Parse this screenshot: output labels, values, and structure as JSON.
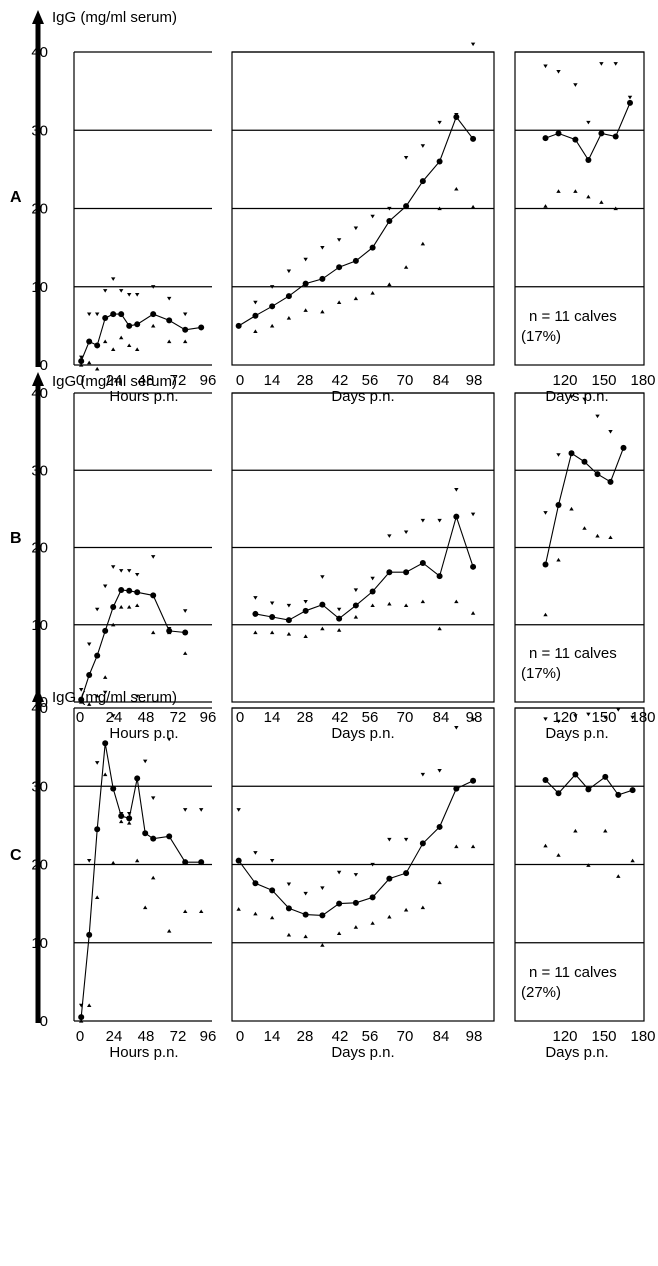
{
  "ylabel": "IgG (mg/ml serum)",
  "y_ticks": [
    "0",
    "10",
    "20",
    "30",
    "40"
  ],
  "panels_meta": {
    "hours": {
      "xlabel": "Hours p.n.",
      "ticks": [
        "0",
        "24",
        "48",
        "72",
        "96"
      ],
      "tick_values": [
        0,
        24,
        48,
        72,
        96
      ]
    },
    "days": {
      "xlabel": "Days p.n.",
      "ticks": [
        "0",
        "14",
        "28",
        "42",
        "56",
        "70",
        "84",
        "98"
      ],
      "tick_values": [
        0,
        14,
        28,
        42,
        56,
        70,
        84,
        98
      ]
    },
    "late": {
      "xlabel": "Days p.n.",
      "ticks": [
        "120",
        "150",
        "180"
      ],
      "tick_values": [
        120,
        150,
        180
      ]
    }
  },
  "chart_data": [
    {
      "group": "A",
      "type": "line",
      "ylabel": "IgG (mg/ml serum)",
      "ylim": [
        0,
        40
      ],
      "grid": true,
      "note_line1": "n = 11 calves",
      "note_line2": "(17%)",
      "panels": [
        {
          "xlabel": "Hours p.n.",
          "xlim": [
            0,
            96
          ],
          "mean": {
            "x": [
              0,
              6,
              12,
              18,
              24,
              30,
              36,
              42,
              54,
              66,
              78,
              90
            ],
            "y": [
              0.5,
              3,
              2.5,
              6,
              6.5,
              6.5,
              5,
              5.2,
              6.5,
              5.7,
              4.5,
              4.8
            ]
          },
          "upper": {
            "x": [
              0,
              6,
              12,
              18,
              24,
              30,
              36,
              42,
              54,
              66,
              78
            ],
            "y": [
              1,
              6.5,
              6.5,
              9.5,
              11,
              9.5,
              9,
              9,
              10,
              8.5,
              6.5
            ]
          },
          "lower": {
            "x": [
              0,
              6,
              12,
              18,
              24,
              30,
              36,
              42,
              54,
              66,
              78
            ],
            "y": [
              0,
              0.3,
              -0.5,
              3,
              2,
              3.5,
              2.5,
              2,
              5,
              3,
              3
            ]
          }
        },
        {
          "xlabel": "Days p.n.",
          "xlim": [
            0,
            108
          ],
          "mean": {
            "x": [
              0,
              7,
              14,
              21,
              28,
              35,
              42,
              49,
              56,
              63,
              70,
              77,
              84,
              91,
              98,
              105
            ],
            "y": [
              5,
              6.3,
              7.5,
              8.8,
              10.4,
              11,
              12.5,
              13.3,
              15,
              18.4,
              20.3,
              23.5,
              26,
              31.7,
              28.9,
              0
            ]
          },
          "upper": {
            "x": [
              0,
              7,
              14,
              21,
              28,
              35,
              42,
              49,
              56,
              63,
              70,
              77,
              84,
              91,
              98
            ],
            "y": [
              5,
              8,
              10,
              12,
              13.5,
              15,
              16,
              17.5,
              19,
              20,
              26.5,
              28,
              31,
              32,
              41
            ]
          },
          "lower": {
            "x": [
              7,
              14,
              21,
              28,
              35,
              42,
              49,
              56,
              63,
              70,
              77,
              84,
              91,
              98
            ],
            "y": [
              4.3,
              5,
              6,
              7,
              6.8,
              8,
              8.5,
              9.2,
              10.3,
              12.5,
              15.5,
              20,
              22.5,
              20.2
            ]
          }
        },
        {
          "xlabel": "Days p.n.",
          "xlim": [
            105,
            182
          ],
          "mean": {
            "x": [
              105,
              115,
              128,
              138,
              148,
              159,
              170
            ],
            "y": [
              29,
              29.6,
              28.8,
              26.2,
              29.6,
              29.2,
              33.5
            ]
          },
          "upper": {
            "x": [
              105,
              115,
              128,
              138,
              148,
              159,
              170
            ],
            "y": [
              38.2,
              37.5,
              35.8,
              31,
              38.5,
              38.5,
              34.2
            ]
          },
          "lower": {
            "x": [
              105,
              115,
              128,
              138,
              148,
              159
            ],
            "y": [
              20.3,
              22.2,
              22.2,
              21.5,
              20.8,
              20
            ]
          }
        }
      ]
    },
    {
      "group": "B",
      "type": "line",
      "ylabel": "IgG (mg/ml serum)",
      "ylim": [
        0,
        40
      ],
      "grid": true,
      "note_line1": "n = 11 calves",
      "note_line2": "(17%)",
      "panels": [
        {
          "xlabel": "Hours p.n.",
          "xlim": [
            0,
            96
          ],
          "mean": {
            "x": [
              0,
              6,
              12,
              18,
              24,
              30,
              36,
              42,
              54,
              66,
              78
            ],
            "y": [
              0.3,
              3.5,
              6,
              9.2,
              12.3,
              14.5,
              14.4,
              14.2,
              13.8,
              9.2,
              9
            ]
          },
          "upper": {
            "x": [
              0,
              6,
              12,
              18,
              24,
              30,
              36,
              42,
              54,
              66,
              78
            ],
            "y": [
              1.6,
              7.5,
              12,
              15,
              17.5,
              17,
              17,
              16.5,
              18.8,
              9.5,
              11.8
            ]
          },
          "lower": {
            "x": [
              0,
              6,
              12,
              18,
              24,
              30,
              36,
              42,
              54,
              66,
              78
            ],
            "y": [
              0,
              -0.3,
              0.8,
              3.2,
              10,
              12.3,
              12.3,
              12.5,
              9,
              9,
              6.3
            ]
          }
        },
        {
          "xlabel": "Days p.n.",
          "xlim": [
            0,
            108
          ],
          "mean": {
            "x": [
              7,
              14,
              21,
              28,
              35,
              42,
              49,
              56,
              63,
              70,
              77,
              84,
              91,
              98,
              105
            ],
            "y": [
              11.4,
              11,
              10.6,
              11.8,
              12.6,
              10.8,
              12.5,
              14.3,
              16.8,
              16.8,
              18,
              16.3,
              24,
              17.5,
              0
            ]
          },
          "upper": {
            "x": [
              7,
              14,
              21,
              28,
              35,
              42,
              49,
              56,
              63,
              70,
              77,
              84,
              91,
              98
            ],
            "y": [
              13.5,
              12.8,
              12.5,
              13,
              16.2,
              12,
              14.5,
              16,
              21.5,
              22,
              23.5,
              23.5,
              27.5,
              24.3
            ]
          },
          "lower": {
            "x": [
              7,
              14,
              21,
              28,
              35,
              42,
              49,
              56,
              63,
              70,
              77,
              84,
              91,
              98
            ],
            "y": [
              9,
              9,
              8.8,
              8.5,
              9.5,
              9.3,
              11,
              12.5,
              12.7,
              12.5,
              13,
              9.5,
              13,
              11.5
            ]
          }
        },
        {
          "xlabel": "Days p.n.",
          "xlim": [
            105,
            182
          ],
          "mean": {
            "x": [
              105,
              115,
              125,
              135,
              145,
              155,
              165
            ],
            "y": [
              17.8,
              25.5,
              32.2,
              31.1,
              29.5,
              28.5,
              32.9
            ]
          },
          "upper": {
            "x": [
              105,
              115,
              125,
              135,
              145,
              155
            ],
            "y": [
              24.5,
              32,
              39.5,
              39.2,
              37,
              35
            ]
          },
          "lower": {
            "x": [
              105,
              115,
              125,
              135,
              145,
              155
            ],
            "y": [
              11.3,
              18.4,
              25,
              22.5,
              21.5,
              21.3
            ]
          }
        }
      ]
    },
    {
      "group": "C",
      "type": "line",
      "ylabel": "IgG (mg/ml serum)",
      "ylim": [
        0,
        40
      ],
      "grid": true,
      "note_line1": "n = 11 calves",
      "note_line2": "(27%)",
      "panels": [
        {
          "xlabel": "Hours p.n.",
          "xlim": [
            0,
            96
          ],
          "mean": {
            "x": [
              0,
              6,
              12,
              18,
              24,
              30,
              36,
              42,
              48,
              54,
              66,
              78,
              90
            ],
            "y": [
              0.5,
              11,
              24.5,
              35.5,
              29.7,
              26.2,
              25.9,
              31,
              24,
              23.3,
              23.6,
              20.3,
              20.3
            ]
          },
          "upper": {
            "x": [
              0,
              6,
              12,
              18,
              24,
              30,
              36,
              42,
              48,
              54,
              66,
              78,
              90
            ],
            "y": [
              2,
              20.5,
              33,
              42,
              39,
              26.5,
              26.5,
              41.5,
              33.2,
              28.5,
              36,
              27,
              27
            ]
          },
          "lower": {
            "x": [
              0,
              6,
              12,
              18,
              24,
              30,
              36,
              42,
              48,
              54,
              66,
              78,
              90
            ],
            "y": [
              0,
              2,
              15.8,
              31.5,
              20.2,
              25.5,
              25.3,
              20.5,
              14.5,
              18.3,
              11.5,
              14,
              14
            ]
          }
        },
        {
          "xlabel": "Days p.n.",
          "xlim": [
            0,
            108
          ],
          "mean": {
            "x": [
              0,
              7,
              14,
              21,
              28,
              35,
              42,
              49,
              56,
              63,
              70,
              77,
              84,
              91,
              98,
              105
            ],
            "y": [
              20.5,
              17.6,
              16.7,
              14.4,
              13.6,
              13.5,
              15,
              15.1,
              15.8,
              18.2,
              18.9,
              22.7,
              24.8,
              29.7,
              30.7,
              0
            ]
          },
          "upper": {
            "x": [
              0,
              7,
              14,
              21,
              28,
              35,
              42,
              49,
              56,
              63,
              70,
              77,
              84,
              91,
              98
            ],
            "y": [
              27,
              21.5,
              20.5,
              17.5,
              16.3,
              17,
              19,
              18.7,
              20,
              23.2,
              23.2,
              31.5,
              32,
              37.5,
              38.5
            ]
          },
          "lower": {
            "x": [
              0,
              7,
              14,
              21,
              28,
              35,
              42,
              49,
              56,
              63,
              70,
              77,
              84,
              91,
              98
            ],
            "y": [
              14.3,
              13.7,
              13.2,
              11,
              10.8,
              9.7,
              11.2,
              12,
              12.5,
              13.3,
              14.2,
              14.5,
              17.7,
              22.3,
              22.3
            ]
          }
        },
        {
          "xlabel": "Days p.n.",
          "xlim": [
            105,
            182
          ],
          "mean": {
            "x": [
              105,
              115,
              128,
              138,
              151,
              161,
              172
            ],
            "y": [
              30.8,
              29.1,
              31.5,
              29.6,
              31.2,
              28.9,
              29.5
            ]
          },
          "upper": {
            "x": [
              105,
              115,
              128,
              138,
              151,
              161,
              172
            ],
            "y": [
              38.6,
              38.3,
              39,
              39.2,
              38.8,
              39.8,
              38.8
            ]
          },
          "lower": {
            "x": [
              105,
              115,
              128,
              138,
              151,
              161,
              172
            ],
            "y": [
              22.4,
              21.2,
              24.3,
              19.9,
              24.3,
              18.5,
              20.5
            ]
          }
        }
      ]
    }
  ]
}
